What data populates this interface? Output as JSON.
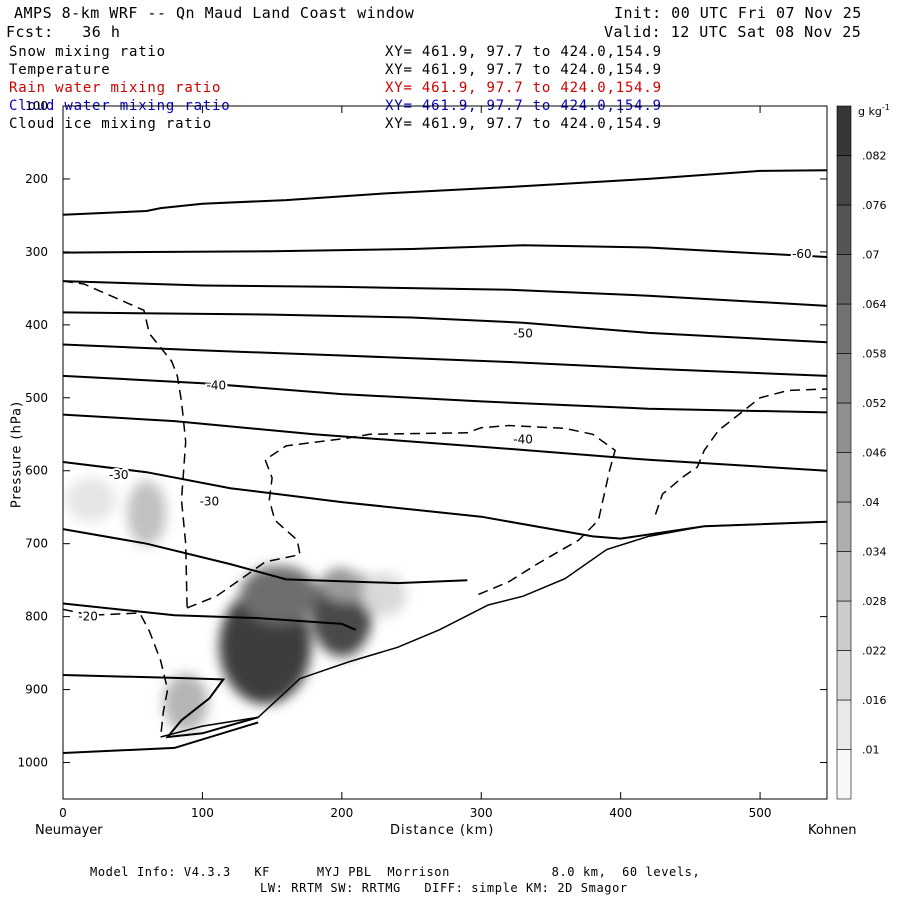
{
  "header": {
    "title": "AMPS 8-km WRF -- Qn Maud Land Coast window",
    "fcst": "Fcst:   36 h",
    "init": "Init: 00 UTC Fri 07 Nov 25",
    "valid": "Valid: 12 UTC Sat 08 Nov 25"
  },
  "fields": [
    {
      "name": "Snow mixing ratio",
      "xy": "XY= 461.9, 97.7 to 424.0,154.9",
      "color": "#000000"
    },
    {
      "name": "Temperature",
      "xy": "XY= 461.9, 97.7 to 424.0,154.9",
      "color": "#000000"
    },
    {
      "name": "Rain water mixing ratio",
      "xy": "XY= 461.9, 97.7 to 424.0,154.9",
      "color": "#d00000"
    },
    {
      "name": "Cloud water mixing ratio",
      "xy": "XY= 461.9, 97.7 to 424.0,154.9",
      "color": "#0000c0"
    },
    {
      "name": "Cloud ice mixing ratio",
      "xy": "XY= 461.9, 97.7 to 424.0,154.9",
      "color": "#000000"
    }
  ],
  "footer": {
    "line1": "Model Info: V4.3.3   KF      MYJ PBL  Morrison             8.0 km,  60 levels,",
    "line2": "LW: RRTM SW: RRTMG   DIFF: simple KM: 2D Smagor"
  },
  "endpoints": {
    "left": "Neumayer",
    "right": "Kohnen"
  },
  "chart_data": {
    "type": "contour-cross-section",
    "xlabel": "Distance (km)",
    "ylabel": "Pressure (hPa)",
    "xlim": [
      0,
      548
    ],
    "ylim": [
      1050,
      100
    ],
    "xticks": [
      0,
      100,
      200,
      300,
      400,
      500
    ],
    "yticks": [
      100,
      200,
      300,
      400,
      500,
      600,
      700,
      800,
      900,
      1000
    ],
    "colorbar": {
      "units": "g kg",
      "units_sup": "-1",
      "labels": [
        ".01",
        ".016",
        ".022",
        ".028",
        ".034",
        ".04",
        ".046",
        ".052",
        ".058",
        ".064",
        ".07",
        ".076",
        ".082"
      ],
      "min": 0.007,
      "max": 0.088
    },
    "temperature_labels": [
      {
        "text": "-60",
        "x": 530,
        "p": 303
      },
      {
        "text": "-50",
        "x": 330,
        "p": 412
      },
      {
        "text": "-40",
        "x": 110,
        "p": 483
      },
      {
        "text": "-40",
        "x": 330,
        "p": 557
      },
      {
        "text": "-30",
        "x": 40,
        "p": 606
      },
      {
        "text": "-30",
        "x": 105,
        "p": 642
      },
      {
        "text": "-20",
        "x": 18,
        "p": 800
      }
    ],
    "temperature_isotherms": [
      [
        [
          0,
          249
        ],
        [
          60,
          244
        ],
        [
          70,
          240
        ],
        [
          100,
          234
        ],
        [
          160,
          229
        ],
        [
          230,
          220
        ],
        [
          320,
          211
        ],
        [
          420,
          200
        ],
        [
          500,
          189
        ],
        [
          548,
          188
        ]
      ],
      [
        [
          0,
          301
        ],
        [
          150,
          299
        ],
        [
          250,
          296
        ],
        [
          330,
          291
        ],
        [
          420,
          294
        ],
        [
          548,
          307
        ]
      ],
      [
        [
          0,
          340
        ],
        [
          100,
          346
        ],
        [
          200,
          348
        ],
        [
          320,
          352
        ],
        [
          420,
          360
        ],
        [
          548,
          374
        ]
      ],
      [
        [
          0,
          383
        ],
        [
          150,
          386
        ],
        [
          250,
          390
        ],
        [
          330,
          397
        ],
        [
          420,
          411
        ],
        [
          548,
          424
        ]
      ],
      [
        [
          0,
          427
        ],
        [
          100,
          435
        ],
        [
          200,
          442
        ],
        [
          320,
          451
        ],
        [
          420,
          460
        ],
        [
          548,
          470
        ]
      ],
      [
        [
          0,
          470
        ],
        [
          100,
          480
        ],
        [
          200,
          495
        ],
        [
          300,
          505
        ],
        [
          420,
          515
        ],
        [
          548,
          520
        ]
      ],
      [
        [
          0,
          523
        ],
        [
          80,
          532
        ],
        [
          180,
          550
        ],
        [
          300,
          567
        ],
        [
          420,
          585
        ],
        [
          548,
          600
        ]
      ],
      [
        [
          0,
          588
        ],
        [
          60,
          602
        ],
        [
          120,
          624
        ],
        [
          200,
          643
        ],
        [
          300,
          663
        ],
        [
          380,
          690
        ],
        [
          400,
          693
        ],
        [
          460,
          676
        ],
        [
          548,
          670
        ]
      ],
      [
        [
          0,
          680
        ],
        [
          60,
          700
        ],
        [
          120,
          728
        ],
        [
          160,
          749
        ],
        [
          240,
          754
        ],
        [
          290,
          750
        ]
      ],
      [
        [
          0,
          782
        ],
        [
          80,
          798
        ],
        [
          140,
          802
        ],
        [
          200,
          810
        ],
        [
          210,
          818
        ]
      ],
      [
        [
          0,
          880
        ],
        [
          80,
          884
        ],
        [
          115,
          886
        ],
        [
          105,
          912
        ],
        [
          85,
          942
        ],
        [
          75,
          965
        ],
        [
          100,
          960
        ],
        [
          140,
          938
        ]
      ],
      [
        [
          0,
          987
        ],
        [
          80,
          980
        ],
        [
          140,
          945
        ]
      ]
    ],
    "snow_contour_dashed": [
      [
        [
          0,
          340
        ],
        [
          15,
          344
        ],
        [
          40,
          365
        ],
        [
          58,
          380
        ],
        [
          62,
          412
        ],
        [
          78,
          450
        ],
        [
          82,
          470
        ],
        [
          85,
          505
        ],
        [
          88,
          560
        ],
        [
          85,
          640
        ],
        [
          88,
          700
        ],
        [
          89,
          788
        ]
      ],
      [
        [
          89,
          788
        ],
        [
          110,
          772
        ],
        [
          125,
          752
        ],
        [
          145,
          725
        ],
        [
          170,
          715
        ],
        [
          168,
          695
        ],
        [
          152,
          668
        ],
        [
          148,
          640
        ],
        [
          150,
          610
        ],
        [
          145,
          585
        ],
        [
          160,
          566
        ],
        [
          205,
          555
        ],
        [
          220,
          550
        ],
        [
          290,
          548
        ],
        [
          300,
          541
        ],
        [
          320,
          538
        ],
        [
          360,
          542
        ],
        [
          380,
          550
        ],
        [
          396,
          572
        ],
        [
          392,
          600
        ],
        [
          384,
          668
        ],
        [
          370,
          695
        ],
        [
          340,
          728
        ],
        [
          320,
          752
        ],
        [
          295,
          772
        ]
      ],
      [
        [
          0,
          790
        ],
        [
          20,
          798
        ],
        [
          55,
          795
        ],
        [
          62,
          820
        ],
        [
          70,
          860
        ],
        [
          75,
          900
        ],
        [
          72,
          930
        ],
        [
          70,
          965
        ]
      ],
      [
        [
          425,
          660
        ],
        [
          430,
          632
        ],
        [
          445,
          608
        ],
        [
          455,
          595
        ],
        [
          460,
          572
        ],
        [
          470,
          545
        ],
        [
          500,
          500
        ],
        [
          520,
          490
        ],
        [
          548,
          488
        ]
      ]
    ],
    "terrain": [
      [
        70,
        965
      ],
      [
        100,
        950
      ],
      [
        140,
        938
      ],
      [
        170,
        885
      ],
      [
        205,
        862
      ],
      [
        240,
        842
      ],
      [
        270,
        818
      ],
      [
        305,
        784
      ],
      [
        330,
        772
      ],
      [
        360,
        748
      ],
      [
        390,
        708
      ],
      [
        420,
        690
      ],
      [
        460,
        676
      ],
      [
        548,
        670
      ]
    ],
    "snow_blobs": [
      {
        "x": 145,
        "p": 840,
        "rx": 33,
        "rp": 80,
        "v": 0.085
      },
      {
        "x": 200,
        "p": 795,
        "rx": 22,
        "rp": 60,
        "v": 0.08
      },
      {
        "x": 155,
        "p": 770,
        "rx": 28,
        "rp": 40,
        "v": 0.065
      },
      {
        "x": 205,
        "p": 760,
        "rx": 20,
        "rp": 20,
        "v": 0.045
      },
      {
        "x": 230,
        "p": 770,
        "rx": 16,
        "rp": 30,
        "v": 0.02
      },
      {
        "x": 88,
        "p": 918,
        "rx": 16,
        "rp": 40,
        "v": 0.035
      },
      {
        "x": 60,
        "p": 658,
        "rx": 14,
        "rp": 45,
        "v": 0.03
      },
      {
        "x": 20,
        "p": 640,
        "rx": 18,
        "rp": 30,
        "v": 0.015
      }
    ]
  }
}
